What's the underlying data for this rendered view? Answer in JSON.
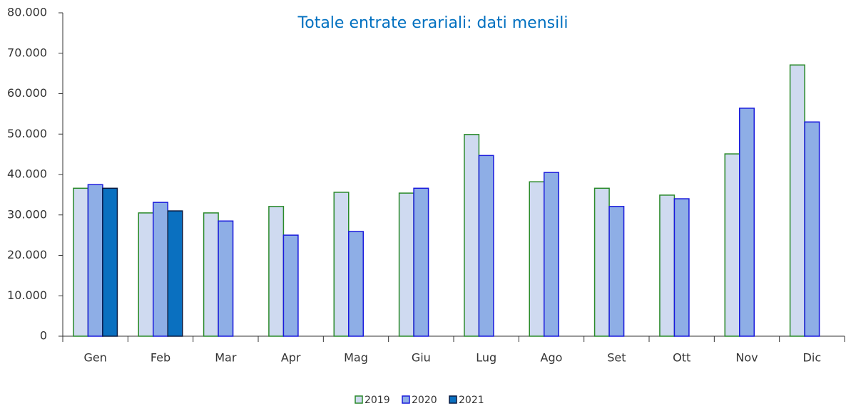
{
  "chart_data": {
    "type": "bar",
    "title": "Totale entrate erariali: dati mensili",
    "categories": [
      "Gen",
      "Feb",
      "Mar",
      "Apr",
      "Mag",
      "Giu",
      "Lug",
      "Ago",
      "Set",
      "Ott",
      "Nov",
      "Dic"
    ],
    "series": [
      {
        "name": "2019",
        "color": "#cfdaf0",
        "stroke": "#2a8a2a",
        "values": [
          36600,
          30500,
          30500,
          32100,
          35600,
          35400,
          49900,
          38200,
          36600,
          34900,
          45100,
          67100
        ]
      },
      {
        "name": "2020",
        "color": "#8eaee6",
        "stroke": "#1a1adc",
        "values": [
          37500,
          33100,
          28500,
          25000,
          25900,
          36600,
          44700,
          40500,
          32100,
          34000,
          56400,
          53000
        ]
      },
      {
        "name": "2021",
        "color": "#0a70c0",
        "stroke": "#0a1a40",
        "values": [
          36600,
          31000,
          null,
          null,
          null,
          null,
          null,
          null,
          null,
          null,
          null,
          null
        ]
      }
    ],
    "ylim": [
      0,
      80000
    ],
    "yticks": [
      0,
      {
        "value": 10000,
        "label": "10.000"
      },
      {
        "value": 20000,
        "label": "20.000"
      },
      {
        "value": 30000,
        "label": "30.000"
      },
      {
        "value": 40000,
        "label": "40.000"
      },
      {
        "value": 50000,
        "label": "50.000"
      },
      {
        "value": 60000,
        "label": "60.000"
      },
      {
        "value": 70000,
        "label": "70.000"
      },
      {
        "value": 80000,
        "label": "80.000"
      }
    ],
    "legend": "bottom"
  }
}
